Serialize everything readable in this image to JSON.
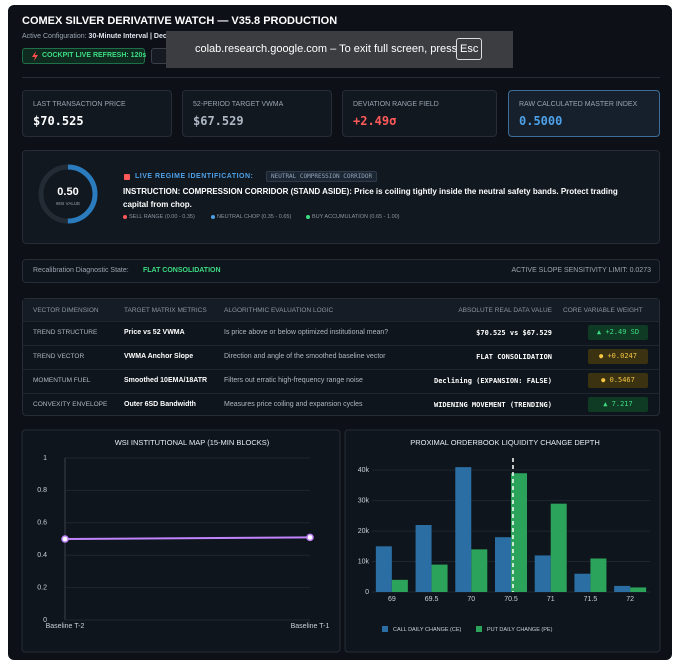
{
  "header": {
    "title": "COMEX SILVER DERIVATIVE WATCH — V35.8 PRODUCTION",
    "config_label": "Active Configuration:",
    "config_value": "30-Minute Interval | Dec",
    "refresh_button": "COCKPIT LIVE REFRESH: 120s"
  },
  "fullscreen_notice": {
    "text": "colab.research.google.com – To exit full screen, press",
    "key": "Esc"
  },
  "cards": [
    {
      "label": "LAST TRANSACTION PRICE",
      "value": "$70.525"
    },
    {
      "label": "52-PERIOD TARGET VWMA",
      "value": "$67.529"
    },
    {
      "label": "DEVIATION RANGE FIELD",
      "value": "+2.49σ"
    },
    {
      "label": "RAW CALCULATED MASTER INDEX",
      "value": "0.5000"
    }
  ],
  "regime": {
    "wsi": {
      "value": 0.5,
      "label": "0.50"
    },
    "wsi_caption": "WSI VALUE",
    "heading": "LIVE REGIME IDENTIFICATION:",
    "badge": "NEUTRAL COMPRESSION CORRIDOR",
    "instruction_label": "INSTRUCTION:",
    "instruction_text": "COMPRESSION CORRIDOR (STAND ASIDE): Price is coiling tightly inside the neutral safety bands. Protect trading capital from chop.",
    "legend": [
      "SELL RANGE (0.00 - 0.35)",
      "NEUTRAL CHOP (0.35 - 0.65)",
      "BUY ACCUMULATION (0.65 - 1.00)"
    ]
  },
  "diagnostic": {
    "label": "Recalibration Diagnostic State:",
    "state": "FLAT CONSOLIDATION",
    "limit": "ACTIVE SLOPE SENSITIVITY LIMIT: 0.0273"
  },
  "table": {
    "headers": [
      "VECTOR DIMENSION",
      "TARGET MATRIX METRICS",
      "ALGORITHMIC EVALUATION LOGIC",
      "ABSOLUTE REAL DATA VALUE",
      "CORE VARIABLE WEIGHT"
    ],
    "rows": [
      [
        "TREND STRUCTURE",
        "Price vs 52 VWMA",
        "Is price above or below optimized institutional mean?",
        "$70.525 vs $67.529",
        "▲ +2.49 SD"
      ],
      [
        "TREND VECTOR",
        "VWMA Anchor Slope",
        "Direction and angle of the smoothed baseline vector",
        "FLAT CONSOLIDATION",
        "● +0.0247"
      ],
      [
        "MOMENTUM FUEL",
        "Smoothed 10EMA/18ATR",
        "Filters out erratic high-frequency range noise",
        "Declining (EXPANSION: FALSE)",
        "● 0.5467"
      ],
      [
        "CONVEXITY ENVELOPE",
        "Outer 6SD Bandwidth",
        "Measures price coiling and expansion cycles",
        "WIDENING MOVEMENT (TRENDING)",
        "▲ 7.217"
      ]
    ]
  },
  "chart_data": [
    {
      "type": "line",
      "title": "WSI INSTITUTIONAL MAP (15-MIN BLOCKS)",
      "categories": [
        "Baseline T-2",
        "Baseline T-1"
      ],
      "values": [
        0.5,
        0.51
      ],
      "color": "#c084fc",
      "ylim": [
        0,
        1
      ],
      "yticks": [
        0,
        0.2,
        0.4,
        0.6,
        0.8,
        1
      ],
      "grid": true
    },
    {
      "type": "bar",
      "title": "PROXIMAL ORDERBOOK LIQUIDITY CHANGE DEPTH",
      "x": [
        69,
        69.5,
        70,
        70.5,
        71,
        71.5,
        72
      ],
      "series": [
        {
          "name": "CALL DAILY CHANGE (CE)",
          "color": "#2b6ea3",
          "values": [
            15000,
            22000,
            41000,
            18000,
            12000,
            6000,
            2000
          ]
        },
        {
          "name": "PUT DAILY CHANGE (PE)",
          "color": "#2ca35b",
          "values": [
            4000,
            9000,
            14000,
            39000,
            29000,
            11000,
            1500
          ]
        }
      ],
      "xlim": [
        68.75,
        72.25
      ],
      "xticks": [
        69,
        69.5,
        70,
        70.5,
        71,
        71.5,
        72
      ],
      "ylim": [
        0,
        44000
      ],
      "yticks": [
        0,
        {
          "value": 10000,
          "label": "10k"
        },
        {
          "value": 20000,
          "label": "20k"
        },
        {
          "value": 30000,
          "label": "30k"
        },
        {
          "value": 40000,
          "label": "40k"
        }
      ],
      "reference_x": 70.525,
      "grid": true,
      "legend": "bottom"
    }
  ]
}
